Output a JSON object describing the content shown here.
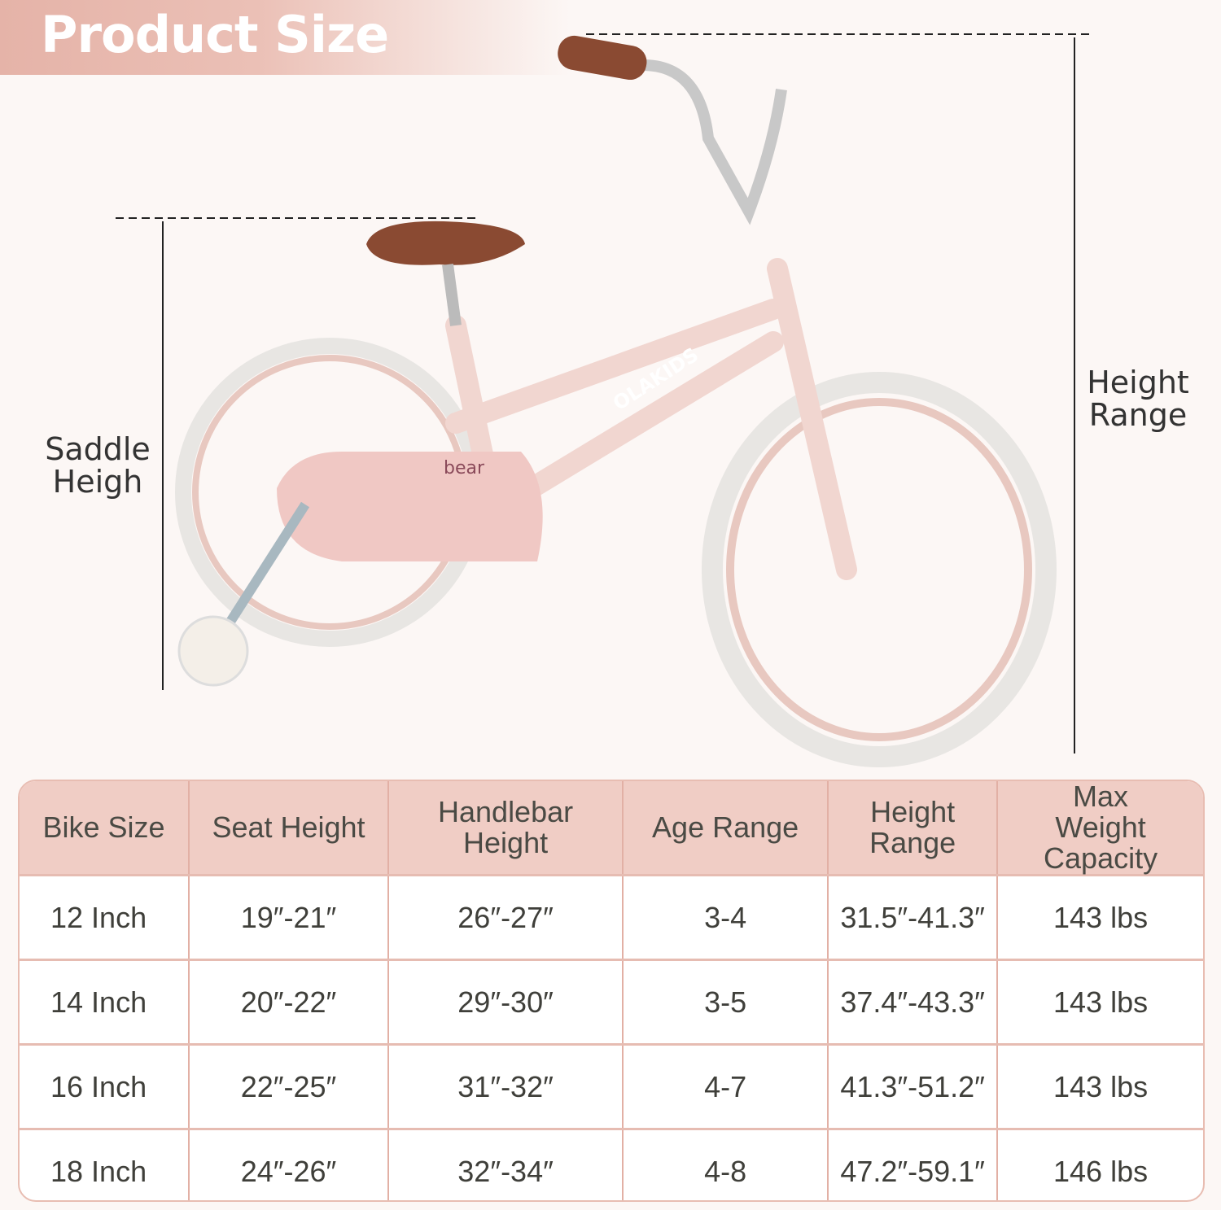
{
  "header": {
    "title": "Product Size"
  },
  "labels": {
    "saddle": "Saddle Heigh",
    "height_range": "Height Range"
  },
  "decals": {
    "brand": "OLAKIDS",
    "bear": "bear"
  },
  "colors": {
    "banner": "#e5b3a8",
    "table_header": "#f0cdc5",
    "border": "#e2b0a5",
    "frame": "#f1d6d0",
    "saddle": "#8a4a32"
  },
  "table": {
    "headers": [
      "Bike Size",
      "Seat Height",
      "Handlebar Height",
      "Age Range",
      "Height Range",
      "Max Weight Capacity"
    ],
    "rows": [
      [
        "12 Inch",
        "19″-21″",
        "26″-27″",
        "3-4",
        "31.5″-41.3″",
        "143 lbs"
      ],
      [
        "14 Inch",
        "20″-22″",
        "29″-30″",
        "3-5",
        "37.4″-43.3″",
        "143 lbs"
      ],
      [
        "16 Inch",
        "22″-25″",
        "31″-32″",
        "4-7",
        "41.3″-51.2″",
        "143 lbs"
      ],
      [
        "18 Inch",
        "24″-26″",
        "32″-34″",
        "4-8",
        "47.2″-59.1″",
        "146 lbs"
      ]
    ]
  }
}
